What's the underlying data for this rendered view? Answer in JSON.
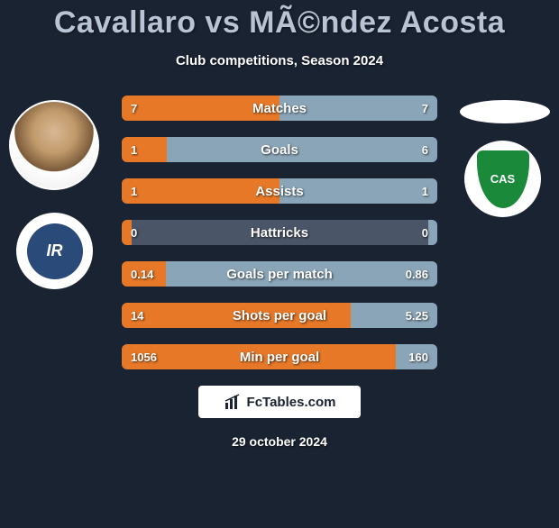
{
  "title": "Cavallaro vs MÃ©ndez Acosta",
  "subtitle": "Club competitions, Season 2024",
  "date": "29 october 2024",
  "brand": "FcTables.com",
  "colors": {
    "background": "#1a2332",
    "left_bar": "#e67828",
    "right_bar": "#8aa5b8",
    "row_bg": "#4a5568",
    "title": "#b8c4d4",
    "club_left_bg": "#2a4a7a",
    "club_right_bg": "#1a8a3a"
  },
  "left_club_text": "IR",
  "right_club_text": "CAS",
  "rows": [
    {
      "label": "Matches",
      "left": "7",
      "right": "7",
      "left_pct": 50,
      "right_pct": 50
    },
    {
      "label": "Goals",
      "left": "1",
      "right": "6",
      "left_pct": 14.3,
      "right_pct": 85.7
    },
    {
      "label": "Assists",
      "left": "1",
      "right": "1",
      "left_pct": 50,
      "right_pct": 50
    },
    {
      "label": "Hattricks",
      "left": "0",
      "right": "0",
      "left_pct": 3,
      "right_pct": 3
    },
    {
      "label": "Goals per match",
      "left": "0.14",
      "right": "0.86",
      "left_pct": 14,
      "right_pct": 86
    },
    {
      "label": "Shots per goal",
      "left": "14",
      "right": "5.25",
      "left_pct": 72.7,
      "right_pct": 27.3
    },
    {
      "label": "Min per goal",
      "left": "1056",
      "right": "160",
      "left_pct": 86.8,
      "right_pct": 13.2
    }
  ]
}
